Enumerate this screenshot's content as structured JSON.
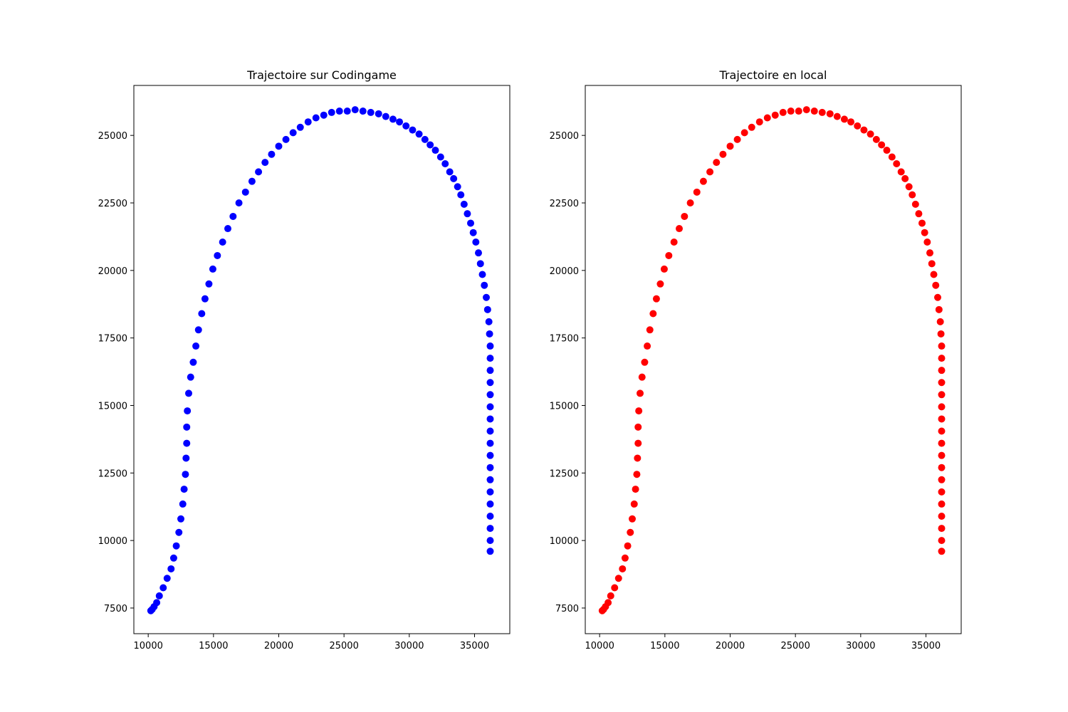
{
  "chart_data": [
    {
      "type": "scatter",
      "title": "Trajectoire sur Codingame",
      "xlabel": "",
      "ylabel": "",
      "xlim": [
        8900,
        37700
      ],
      "ylim": [
        6550,
        26850
      ],
      "xticks": [
        10000,
        15000,
        20000,
        25000,
        30000,
        35000
      ],
      "yticks": [
        7500,
        10000,
        12500,
        15000,
        17500,
        20000,
        22500,
        25000
      ],
      "xtick_labels": [
        "10000",
        "15000",
        "20000",
        "25000",
        "30000",
        "35000"
      ],
      "ytick_labels": [
        "7500",
        "10000",
        "12500",
        "15000",
        "17500",
        "20000",
        "22500",
        "25000"
      ],
      "grid": false,
      "color": "#0000ff",
      "points": [
        [
          10200,
          7400
        ],
        [
          10300,
          7450
        ],
        [
          10450,
          7550
        ],
        [
          10650,
          7700
        ],
        [
          10850,
          7950
        ],
        [
          11150,
          8250
        ],
        [
          11450,
          8600
        ],
        [
          11750,
          8950
        ],
        [
          11950,
          9350
        ],
        [
          12150,
          9800
        ],
        [
          12350,
          10300
        ],
        [
          12500,
          10800
        ],
        [
          12650,
          11350
        ],
        [
          12750,
          11900
        ],
        [
          12850,
          12450
        ],
        [
          12900,
          13050
        ],
        [
          12950,
          13600
        ],
        [
          12950,
          14200
        ],
        [
          13000,
          14800
        ],
        [
          13100,
          15450
        ],
        [
          13250,
          16050
        ],
        [
          13450,
          16600
        ],
        [
          13650,
          17200
        ],
        [
          13850,
          17800
        ],
        [
          14100,
          18400
        ],
        [
          14350,
          18950
        ],
        [
          14650,
          19500
        ],
        [
          14950,
          20050
        ],
        [
          15300,
          20550
        ],
        [
          15700,
          21050
        ],
        [
          16100,
          21550
        ],
        [
          16500,
          22000
        ],
        [
          16950,
          22500
        ],
        [
          17450,
          22900
        ],
        [
          17950,
          23300
        ],
        [
          18450,
          23650
        ],
        [
          18950,
          24000
        ],
        [
          19450,
          24300
        ],
        [
          20000,
          24600
        ],
        [
          20550,
          24850
        ],
        [
          21100,
          25100
        ],
        [
          21650,
          25300
        ],
        [
          22250,
          25500
        ],
        [
          22850,
          25650
        ],
        [
          23450,
          25750
        ],
        [
          24050,
          25850
        ],
        [
          24650,
          25900
        ],
        [
          25250,
          25900
        ],
        [
          25850,
          25950
        ],
        [
          26450,
          25900
        ],
        [
          27050,
          25850
        ],
        [
          27650,
          25800
        ],
        [
          28200,
          25700
        ],
        [
          28750,
          25600
        ],
        [
          29250,
          25500
        ],
        [
          29750,
          25350
        ],
        [
          30250,
          25200
        ],
        [
          30750,
          25050
        ],
        [
          31200,
          24850
        ],
        [
          31600,
          24650
        ],
        [
          32000,
          24450
        ],
        [
          32400,
          24200
        ],
        [
          32750,
          23950
        ],
        [
          33100,
          23650
        ],
        [
          33400,
          23400
        ],
        [
          33700,
          23100
        ],
        [
          33950,
          22800
        ],
        [
          34200,
          22450
        ],
        [
          34450,
          22100
        ],
        [
          34700,
          21750
        ],
        [
          34900,
          21400
        ],
        [
          35100,
          21050
        ],
        [
          35300,
          20650
        ],
        [
          35450,
          20250
        ],
        [
          35600,
          19850
        ],
        [
          35750,
          19450
        ],
        [
          35900,
          19000
        ],
        [
          36000,
          18550
        ],
        [
          36100,
          18100
        ],
        [
          36150,
          17650
        ],
        [
          36200,
          17200
        ],
        [
          36200,
          16750
        ],
        [
          36200,
          16300
        ],
        [
          36200,
          15850
        ],
        [
          36200,
          15400
        ],
        [
          36200,
          14950
        ],
        [
          36200,
          14500
        ],
        [
          36200,
          14050
        ],
        [
          36200,
          13600
        ],
        [
          36200,
          13150
        ],
        [
          36200,
          12700
        ],
        [
          36200,
          12250
        ],
        [
          36200,
          11800
        ],
        [
          36200,
          11350
        ],
        [
          36200,
          10900
        ],
        [
          36200,
          10450
        ],
        [
          36200,
          10000
        ],
        [
          36200,
          9600
        ]
      ]
    },
    {
      "type": "scatter",
      "title": "Trajectoire en local",
      "xlabel": "",
      "ylabel": "",
      "xlim": [
        8900,
        37700
      ],
      "ylim": [
        6550,
        26850
      ],
      "xticks": [
        10000,
        15000,
        20000,
        25000,
        30000,
        35000
      ],
      "yticks": [
        7500,
        10000,
        12500,
        15000,
        17500,
        20000,
        22500,
        25000
      ],
      "xtick_labels": [
        "10000",
        "15000",
        "20000",
        "25000",
        "30000",
        "35000"
      ],
      "ytick_labels": [
        "7500",
        "10000",
        "12500",
        "15000",
        "17500",
        "20000",
        "22500",
        "25000"
      ],
      "grid": false,
      "color": "#ff0000",
      "points": [
        [
          10200,
          7400
        ],
        [
          10300,
          7450
        ],
        [
          10450,
          7550
        ],
        [
          10650,
          7700
        ],
        [
          10850,
          7950
        ],
        [
          11150,
          8250
        ],
        [
          11450,
          8600
        ],
        [
          11750,
          8950
        ],
        [
          11950,
          9350
        ],
        [
          12150,
          9800
        ],
        [
          12350,
          10300
        ],
        [
          12500,
          10800
        ],
        [
          12650,
          11350
        ],
        [
          12750,
          11900
        ],
        [
          12850,
          12450
        ],
        [
          12900,
          13050
        ],
        [
          12950,
          13600
        ],
        [
          12950,
          14200
        ],
        [
          13000,
          14800
        ],
        [
          13100,
          15450
        ],
        [
          13250,
          16050
        ],
        [
          13450,
          16600
        ],
        [
          13650,
          17200
        ],
        [
          13850,
          17800
        ],
        [
          14100,
          18400
        ],
        [
          14350,
          18950
        ],
        [
          14650,
          19500
        ],
        [
          14950,
          20050
        ],
        [
          15300,
          20550
        ],
        [
          15700,
          21050
        ],
        [
          16100,
          21550
        ],
        [
          16500,
          22000
        ],
        [
          16950,
          22500
        ],
        [
          17450,
          22900
        ],
        [
          17950,
          23300
        ],
        [
          18450,
          23650
        ],
        [
          18950,
          24000
        ],
        [
          19450,
          24300
        ],
        [
          20000,
          24600
        ],
        [
          20550,
          24850
        ],
        [
          21100,
          25100
        ],
        [
          21650,
          25300
        ],
        [
          22250,
          25500
        ],
        [
          22850,
          25650
        ],
        [
          23450,
          25750
        ],
        [
          24050,
          25850
        ],
        [
          24650,
          25900
        ],
        [
          25250,
          25900
        ],
        [
          25850,
          25950
        ],
        [
          26450,
          25900
        ],
        [
          27050,
          25850
        ],
        [
          27650,
          25800
        ],
        [
          28200,
          25700
        ],
        [
          28750,
          25600
        ],
        [
          29250,
          25500
        ],
        [
          29750,
          25350
        ],
        [
          30250,
          25200
        ],
        [
          30750,
          25050
        ],
        [
          31200,
          24850
        ],
        [
          31600,
          24650
        ],
        [
          32000,
          24450
        ],
        [
          32400,
          24200
        ],
        [
          32750,
          23950
        ],
        [
          33100,
          23650
        ],
        [
          33400,
          23400
        ],
        [
          33700,
          23100
        ],
        [
          33950,
          22800
        ],
        [
          34200,
          22450
        ],
        [
          34450,
          22100
        ],
        [
          34700,
          21750
        ],
        [
          34900,
          21400
        ],
        [
          35100,
          21050
        ],
        [
          35300,
          20650
        ],
        [
          35450,
          20250
        ],
        [
          35600,
          19850
        ],
        [
          35750,
          19450
        ],
        [
          35900,
          19000
        ],
        [
          36000,
          18550
        ],
        [
          36100,
          18100
        ],
        [
          36150,
          17650
        ],
        [
          36200,
          17200
        ],
        [
          36200,
          16750
        ],
        [
          36200,
          16300
        ],
        [
          36200,
          15850
        ],
        [
          36200,
          15400
        ],
        [
          36200,
          14950
        ],
        [
          36200,
          14500
        ],
        [
          36200,
          14050
        ],
        [
          36200,
          13600
        ],
        [
          36200,
          13150
        ],
        [
          36200,
          12700
        ],
        [
          36200,
          12250
        ],
        [
          36200,
          11800
        ],
        [
          36200,
          11350
        ],
        [
          36200,
          10900
        ],
        [
          36200,
          10450
        ],
        [
          36200,
          10000
        ],
        [
          36200,
          9600
        ]
      ]
    }
  ]
}
